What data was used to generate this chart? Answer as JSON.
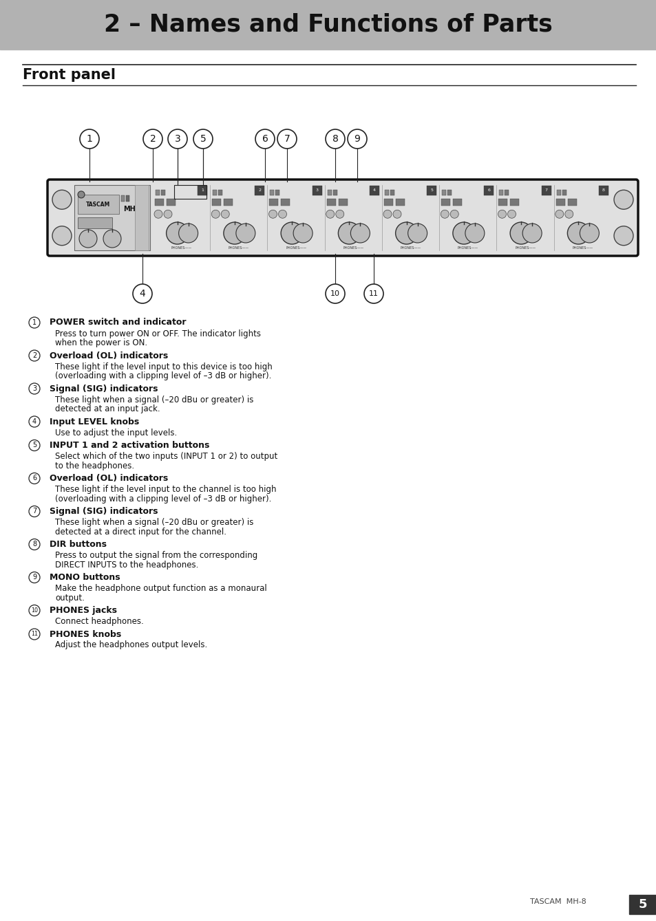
{
  "title": "2 – Names and Functions of Parts",
  "title_bg": "#b2b2b2",
  "page_bg": "#ffffff",
  "section_title": "Front panel",
  "footer_text": "TASCAM  MH-8",
  "footer_page": "5",
  "items": [
    {
      "num": "1",
      "bold": "POWER switch and indicator",
      "text": "Press to turn power ON or OFF. The indicator lights\nwhen the power is ON."
    },
    {
      "num": "2",
      "bold": "Overload (OL) indicators",
      "text": "These light if the level input to this device is too high\n(overloading with a clipping level of –3 dB or higher)."
    },
    {
      "num": "3",
      "bold": "Signal (SIG) indicators",
      "text": "These light when a signal (–20 dBu or greater) is\ndetected at an input jack."
    },
    {
      "num": "4",
      "bold": "Input LEVEL knobs",
      "text": "Use to adjust the input levels."
    },
    {
      "num": "5",
      "bold": "INPUT 1 and 2 activation buttons",
      "text": "Select which of the two inputs (INPUT 1 or 2) to output\nto the headphones."
    },
    {
      "num": "6",
      "bold": "Overload (OL) indicators",
      "text": "These light if the level input to the channel is too high\n(overloading with a clipping level of –3 dB or higher)."
    },
    {
      "num": "7",
      "bold": "Signal (SIG) indicators",
      "text": "These light when a signal (–20 dBu or greater) is\ndetected at a direct input for the channel."
    },
    {
      "num": "8",
      "bold": "DIR buttons",
      "text": "Press to output the signal from the corresponding\nDIRECT INPUTS to the headphones."
    },
    {
      "num": "9",
      "bold": "MONO buttons",
      "text": "Make the headphone output function as a monaural\noutput."
    },
    {
      "num": "10",
      "bold": "PHONES jacks",
      "text": "Connect headphones."
    },
    {
      "num": "11",
      "bold": "PHONES knobs",
      "text": "Adjust the headphones output levels."
    }
  ]
}
